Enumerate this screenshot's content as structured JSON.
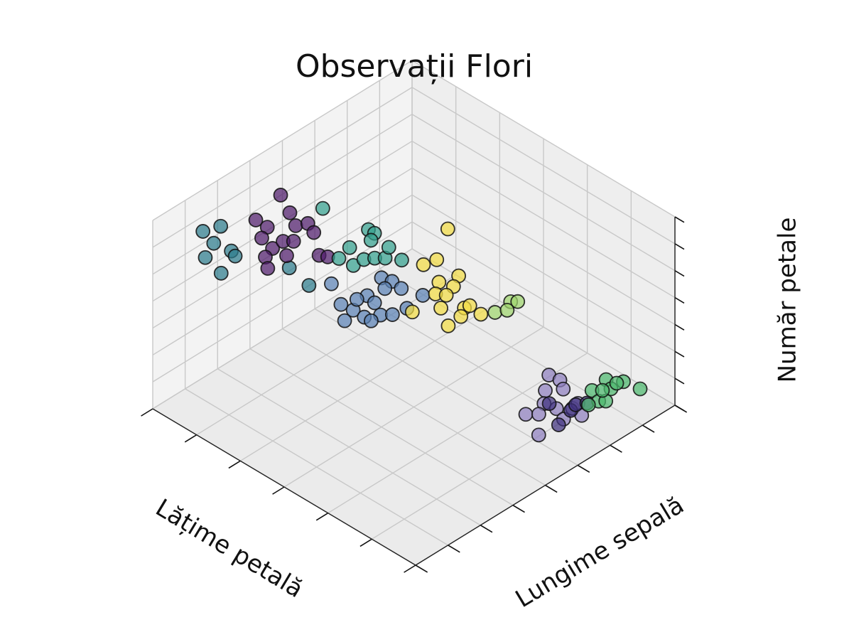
{
  "chart_data": {
    "type": "scatter3d",
    "title": "Observații Flori",
    "xlabel": "Lățime petală",
    "ylabel": "Lungime sepală",
    "zlabel": "Număr petale",
    "xlim": [
      0,
      6
    ],
    "ylim": [
      0,
      8
    ],
    "zlim": [
      0,
      7
    ],
    "xticks": [
      0,
      1,
      2,
      3,
      4,
      5,
      6
    ],
    "yticks": [
      0,
      1,
      2,
      3,
      4,
      5,
      6,
      7,
      8
    ],
    "zticks": [
      0,
      1,
      2,
      3,
      4,
      5,
      6,
      7
    ],
    "grid": true,
    "series": [
      {
        "color": "#2c7c8c",
        "x": [
          5.92,
          5.81,
          5.57,
          5.22,
          5.4,
          5.08,
          4.92,
          4.23,
          3.67
        ],
        "y": [
          1.44,
          1.84,
          1.3,
          1.37,
          0.81,
          1.3,
          0.65,
          1.82,
          1.67
        ],
        "z": [
          5.6,
          5.6,
          5.6,
          5.6,
          5.6,
          5.6,
          5.6,
          5.6,
          5.6
        ]
      },
      {
        "color": "#4f1c6b",
        "x": [
          5.7,
          5.52,
          5.25,
          5.26,
          4.95,
          4.85,
          4.61,
          5.11,
          4.79,
          4.71,
          4.49,
          4.8,
          4.68,
          4.47,
          4.12,
          3.99
        ],
        "y": [
          3.54,
          2.53,
          2.52,
          3.23,
          2.99,
          3.23,
          3.09,
          2.16,
          2.06,
          1.73,
          2.09,
          2.4,
          2.56,
          1.48,
          2.59,
          2.68
        ],
        "z": [
          5.6,
          5.6,
          5.6,
          5.6,
          5.6,
          5.6,
          5.6,
          5.6,
          5.6,
          5.6,
          5.6,
          5.6,
          5.6,
          5.6,
          5.6,
          5.6
        ]
      },
      {
        "color": "#33a08d",
        "x": [
          4.03,
          3.89,
          3.8,
          3.91,
          3.83,
          3.53,
          3.52,
          3.42,
          3.3,
          3.46,
          3.07,
          4.96
        ],
        "y": [
          3.99,
          3.99,
          3.76,
          3.25,
          2.81,
          2.85,
          3.16,
          3.36,
          3.52,
          3.85,
          3.72,
          3.84
        ],
        "z": [
          5.6,
          5.6,
          5.6,
          5.6,
          5.6,
          5.6,
          5.6,
          5.6,
          5.6,
          5.6,
          5.6,
          5.6
        ]
      },
      {
        "color": "#5c82b5",
        "x": [
          3.68,
          3.49,
          3.51,
          3.44,
          3.25,
          2.87,
          3.65,
          3.4,
          3.3,
          3.14,
          3.29,
          2.99,
          2.86,
          2.81,
          4.15,
          3.56,
          2.99
        ],
        "y": [
          3.92,
          3.99,
          3.25,
          3.7,
          3.95,
          4.1,
          2.63,
          2.67,
          2.27,
          2.66,
          3.18,
          2.96,
          3.15,
          3.53,
          3.01,
          3.0,
          2.67
        ],
        "z": [
          4.2,
          4.2,
          4.2,
          4.2,
          4.2,
          4.2,
          4.2,
          4.2,
          4.2,
          4.2,
          4.2,
          4.2,
          4.2,
          4.2,
          4.2,
          4.2,
          4.2
        ]
      },
      {
        "color": "#f2dc45",
        "x": [
          3.83,
          3.44,
          3.38,
          2.82,
          2.93,
          2.68,
          2.75,
          2.6,
          2.42,
          2.15,
          2.13,
          2.03,
          2.0,
          1.84,
          2.68
        ],
        "y": [
          6.17,
          4.89,
          5.22,
          5.14,
          4.68,
          4.79,
          4.33,
          4.46,
          4.05,
          4.41,
          4.55,
          4.14,
          3.71,
          4.5,
          3.52
        ],
        "z": [
          4.2,
          4.2,
          4.2,
          4.2,
          4.2,
          4.2,
          4.2,
          4.2,
          4.2,
          4.2,
          4.2,
          4.2,
          4.2,
          4.2,
          4.2
        ]
      },
      {
        "color": "#9fd66e",
        "x": [
          1.73,
          1.65,
          1.71,
          1.61
        ],
        "y": [
          5.27,
          5.38,
          4.76,
          5.0
        ],
        "z": [
          4.2,
          4.2,
          4.2,
          4.2
        ]
      },
      {
        "color": "#8f7fbf",
        "x": [
          1.5,
          1.28,
          1.25,
          1.07,
          1.02,
          1.03,
          0.88,
          0.78,
          0.6,
          0.5,
          0.49,
          0.63,
          0.36
        ],
        "y": [
          6.14,
          6.18,
          5.69,
          6.0,
          5.34,
          4.79,
          4.99,
          5.4,
          5.65,
          5.24,
          4.46,
          5.86,
          5.61
        ],
        "z": [
          1.05,
          1.05,
          1.05,
          1.05,
          1.05,
          1.05,
          1.05,
          1.05,
          1.05,
          1.05,
          1.05,
          1.05,
          1.05
        ]
      },
      {
        "color": "#40327e",
        "x": [
          0.58,
          0.63,
          0.45,
          0.53,
          0.96
        ],
        "y": [
          5.57,
          5.79,
          5.02,
          6.0,
          5.42
        ],
        "z": [
          1.05,
          1.05,
          1.05,
          1.05,
          1.05
        ]
      },
      {
        "color": "#4cb86e",
        "x": [
          0.75,
          0.51,
          0.71,
          0.52,
          0.43,
          0.35,
          0.18,
          0.48,
          0.56,
          0.59
        ],
        "y": [
          6.89,
          7.1,
          6.4,
          6.73,
          6.23,
          6.34,
          7.17,
          5.98,
          6.96,
          6.56
        ],
        "z": [
          1.05,
          1.05,
          1.05,
          1.05,
          1.05,
          1.05,
          1.05,
          1.05,
          1.05,
          1.05
        ]
      }
    ]
  }
}
